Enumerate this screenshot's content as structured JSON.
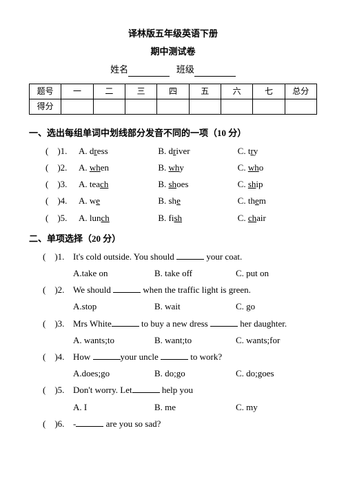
{
  "header": {
    "title1": "译林版五年级英语下册",
    "title2": "期中测试卷",
    "name_label": "姓名",
    "class_label": "班级"
  },
  "score_table": {
    "row1": [
      "题号",
      "一",
      "二",
      "三",
      "四",
      "五",
      "六",
      "七",
      "总分"
    ],
    "row2_label": "得分"
  },
  "section1": {
    "heading": "一、选出每组单词中划线部分发音不同的一项（10 分）",
    "items": [
      {
        "n": ")1.",
        "a_pre": "A. d",
        "a_u": "r",
        "a_post": "ess",
        "b_pre": "B. d",
        "b_u": "r",
        "b_post": "iver",
        "c_pre": "C. t",
        "c_u": "r",
        "c_post": "y"
      },
      {
        "n": ")2.",
        "a_pre": "A. ",
        "a_u": "wh",
        "a_post": "en",
        "b_pre": "B. ",
        "b_u": "wh",
        "b_post": "y",
        "c_pre": "C. ",
        "c_u": "wh",
        "c_post": "o"
      },
      {
        "n": ")3.",
        "a_pre": "A. tea",
        "a_u": "ch",
        "a_post": "",
        "b_pre": "B. ",
        "b_u": "sh",
        "b_post": "oes",
        "c_pre": "C. ",
        "c_u": "sh",
        "c_post": "ip"
      },
      {
        "n": ")4.",
        "a_pre": "A. w",
        "a_u": "e",
        "a_post": "",
        "b_pre": "B. sh",
        "b_u": "e",
        "b_post": "",
        "c_pre": "C. th",
        "c_u": "e",
        "c_post": "m"
      },
      {
        "n": ")5.",
        "a_pre": "A. lun",
        "a_u": "ch",
        "a_post": "",
        "b_pre": "B. fi",
        "b_u": "sh",
        "b_post": "",
        "c_pre": "C. ",
        "c_u": "ch",
        "c_post": "air"
      }
    ]
  },
  "section2": {
    "heading": "二、单项选择（20 分）",
    "items": [
      {
        "n": ")1.",
        "stem_pre": "It's cold outside. You should ",
        "stem_post": " your coat.",
        "a": "A.take on",
        "b": "B. take off",
        "c": "C. put on"
      },
      {
        "n": ")2.",
        "stem_pre": "We should ",
        "stem_post": " when the traffic light is green.",
        "a": "A.stop",
        "b": "B. wait",
        "c": "C. go"
      },
      {
        "n": ")3.",
        "stem_pre": "Mrs White",
        "stem_mid": " to buy a new dress ",
        "stem_post": " her daughter.",
        "a": "A. wants;to",
        "b": "B. want;to",
        "c": "C. wants;for"
      },
      {
        "n": ")4.",
        "stem_pre": "How ",
        "stem_mid": "your uncle ",
        "stem_post": " to work?",
        "a": "A.does;go",
        "b": "B. do;go",
        "c": "C. do;goes"
      },
      {
        "n": ")5.",
        "stem_pre": "Don't worry. Let",
        "stem_post": " help you",
        "a": "A. I",
        "b": "B. me",
        "c": "C. my"
      },
      {
        "n": ")6.",
        "stem_pre": "-",
        "stem_post": " are you so sad?",
        "a": "",
        "b": "",
        "c": ""
      }
    ]
  }
}
